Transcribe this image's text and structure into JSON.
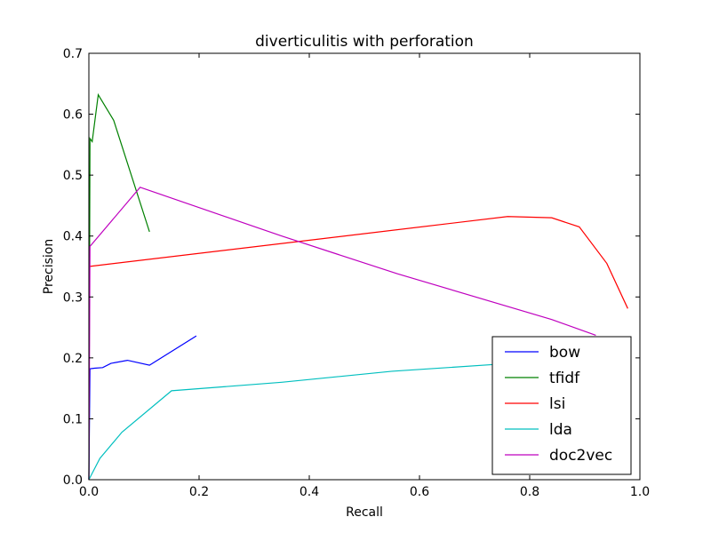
{
  "chart_data": {
    "type": "line",
    "title": "diverticulitis with perforation",
    "xlabel": "Recall",
    "ylabel": "Precision",
    "xlim": [
      0.0,
      1.0
    ],
    "ylim": [
      0.0,
      0.7
    ],
    "xticks": [
      0.0,
      0.2,
      0.4,
      0.6,
      0.8,
      1.0
    ],
    "xtick_labels": [
      "0.0",
      "0.2",
      "0.4",
      "0.6",
      "0.8",
      "1.0"
    ],
    "yticks": [
      0.0,
      0.1,
      0.2,
      0.3,
      0.4,
      0.5,
      0.6,
      0.7
    ],
    "ytick_labels": [
      "0.0",
      "0.1",
      "0.2",
      "0.3",
      "0.4",
      "0.5",
      "0.6",
      "0.7"
    ],
    "grid": false,
    "legend_position": "lower-right",
    "series": [
      {
        "name": "bow",
        "color": "#0000ff",
        "x": [
          0.0,
          0.002,
          0.01,
          0.025,
          0.04,
          0.07,
          0.11,
          0.195
        ],
        "y": [
          0.0,
          0.182,
          0.183,
          0.184,
          0.191,
          0.196,
          0.188,
          0.236
        ]
      },
      {
        "name": "tfidf",
        "color": "#008000",
        "x": [
          0.0,
          0.002,
          0.006,
          0.017,
          0.045,
          0.11
        ],
        "y": [
          0.0,
          0.56,
          0.555,
          0.632,
          0.59,
          0.407
        ]
      },
      {
        "name": "lsi",
        "color": "#ff0000",
        "x": [
          0.0,
          0.76,
          0.84,
          0.89,
          0.94,
          0.978
        ],
        "y": [
          0.35,
          0.432,
          0.43,
          0.415,
          0.355,
          0.281
        ]
      },
      {
        "name": "lda",
        "color": "#00bfbf",
        "x": [
          0.0,
          0.02,
          0.06,
          0.15,
          0.35,
          0.55,
          0.75,
          0.8
        ],
        "y": [
          0.0,
          0.035,
          0.078,
          0.146,
          0.16,
          0.178,
          0.19,
          0.192
        ]
      },
      {
        "name": "doc2vec",
        "color": "#bf00bf",
        "x": [
          0.0,
          0.002,
          0.093,
          0.35,
          0.56,
          0.84,
          0.92
        ],
        "y": [
          0.0,
          0.383,
          0.48,
          0.4,
          0.338,
          0.263,
          0.237
        ]
      }
    ]
  }
}
